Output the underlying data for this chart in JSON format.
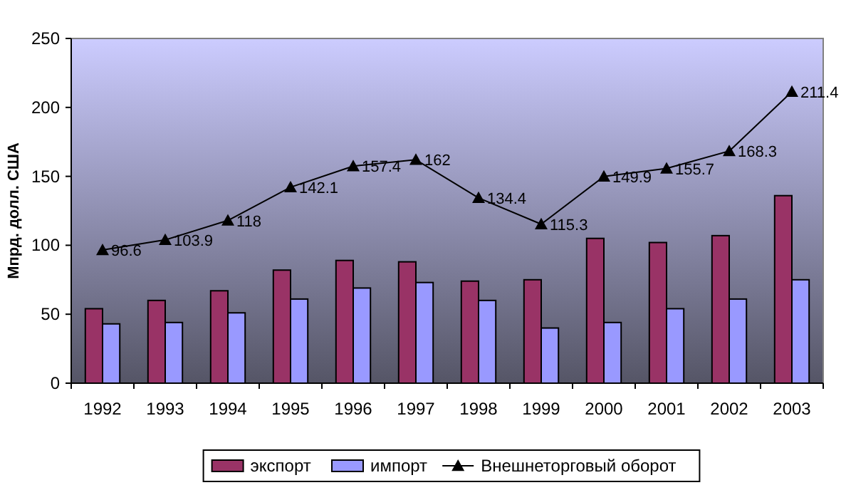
{
  "chart_data": {
    "type": "bar",
    "ylabel": "Мпрд. долл. США",
    "categories": [
      "1992",
      "1993",
      "1994",
      "1995",
      "1996",
      "1997",
      "1998",
      "1999",
      "2000",
      "2001",
      "2002",
      "2003"
    ],
    "series": [
      {
        "name": "экспорт",
        "color": "#993366",
        "values": [
          54,
          60,
          67,
          82,
          89,
          88,
          74,
          75,
          105,
          102,
          107,
          136
        ]
      },
      {
        "name": "импорт",
        "color": "#9999ff",
        "values": [
          43,
          44,
          51,
          61,
          69,
          73,
          60,
          40,
          44,
          54,
          61,
          75
        ]
      },
      {
        "name": "Внешнеторговый оборот",
        "type": "line",
        "color": "#000000",
        "marker": "triangle",
        "values": [
          96.6,
          103.9,
          118,
          142.1,
          157.4,
          162,
          134.4,
          115.3,
          149.9,
          155.7,
          168.3,
          211.4
        ],
        "value_labels": [
          "96.6",
          "103.9",
          "118",
          "142.1",
          "157.4",
          "162",
          "134.4",
          "115.3",
          "149.9",
          "155.7",
          "168.3",
          "211.4"
        ]
      }
    ],
    "ylim": [
      0,
      250
    ],
    "yticks": [
      0,
      50,
      100,
      150,
      200,
      250
    ],
    "legend": "bottom",
    "grid": false
  }
}
